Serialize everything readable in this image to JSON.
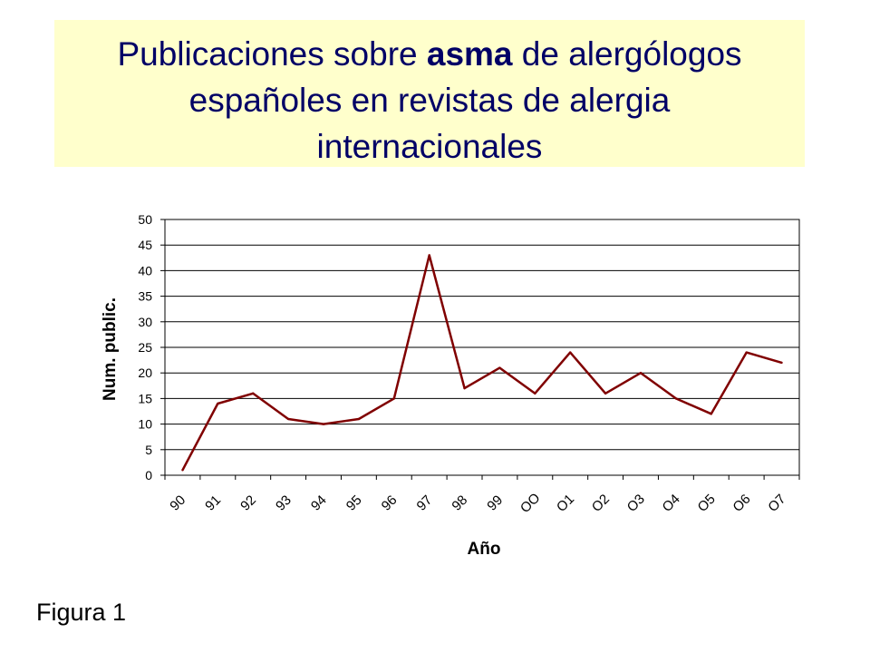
{
  "title": {
    "line1_prefix": "Publicaciones sobre ",
    "line1_bold": "asma",
    "line1_suffix": " de alergólogos",
    "line2": "españoles en revistas de alergia",
    "line3": "internacionales"
  },
  "figure_label": "Figura 1",
  "colors": {
    "title_bg": "#ffffcc",
    "title_text": "#000066",
    "line": "#800000",
    "grid": "#000000"
  },
  "chart_data": {
    "type": "line",
    "title": "Publicaciones sobre asma de alergólogos españoles en revistas de alergia internacionales",
    "xlabel": "Año",
    "ylabel": "Num. public.",
    "categories": [
      "90",
      "91",
      "92",
      "93",
      "94",
      "95",
      "96",
      "97",
      "98",
      "99",
      "OO",
      "O1",
      "O2",
      "O3",
      "O4",
      "O5",
      "O6",
      "O7"
    ],
    "values": [
      1,
      14,
      16,
      11,
      10,
      11,
      15,
      43,
      17,
      21,
      16,
      24,
      16,
      20,
      15,
      12,
      24,
      22
    ],
    "ylim": [
      0,
      50
    ],
    "yticks": [
      0,
      5,
      10,
      15,
      20,
      25,
      30,
      35,
      40,
      45,
      50
    ],
    "grid": true,
    "legend": "none"
  }
}
